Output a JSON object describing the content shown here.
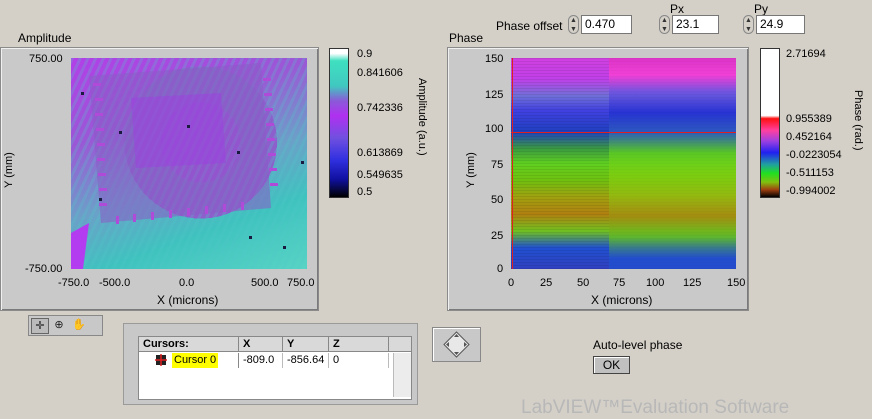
{
  "amplitude": {
    "title": "Amplitude",
    "y_ticks": [
      "750.00",
      "-750.00"
    ],
    "y_axis_label": "Y (mm)",
    "x_ticks": [
      "-750.0",
      "-500.0",
      "0.0",
      "500.0",
      "750.0"
    ],
    "x_axis_label": "X (microns)",
    "colorbar_ticks": [
      "0.9",
      "0.841606",
      "0.742336",
      "0.613869",
      "0.549635",
      "0.5"
    ],
    "colorbar_label": "Amplitude (a.u.)"
  },
  "phase": {
    "title": "Phase",
    "y_ticks": [
      "150",
      "125",
      "100",
      "75",
      "50",
      "25",
      "0"
    ],
    "y_axis_label": "Y (mm)",
    "x_ticks": [
      "0",
      "25",
      "50",
      "75",
      "100",
      "125",
      "150"
    ],
    "x_axis_label": "X (microns)",
    "colorbar_ticks": [
      "2.71694",
      "0.955389",
      "0.452164",
      "-0.0223054",
      "-0.511153",
      "-0.994002"
    ],
    "colorbar_label": "Phase (rad.)"
  },
  "controls": {
    "phase_offset_label": "Phase offset",
    "phase_offset_value": "0.470",
    "px_label": "Px",
    "px_value": "23.1",
    "py_label": "Py",
    "py_value": "24.9",
    "auto_level_label": "Auto-level phase",
    "ok_label": "OK"
  },
  "cursors": {
    "headers": [
      "Cursors:",
      "X",
      "Y",
      "Z"
    ],
    "rows": [
      {
        "name": "Cursor 0",
        "x": "-809.0",
        "y": "-856.64",
        "z": "0"
      }
    ]
  },
  "watermark": "LabVIEW™Evaluation Software",
  "colors": {
    "background": "#d4d0c8",
    "cursor_highlight": "#ffff00",
    "phase_cursor_line": "#ff0000"
  }
}
